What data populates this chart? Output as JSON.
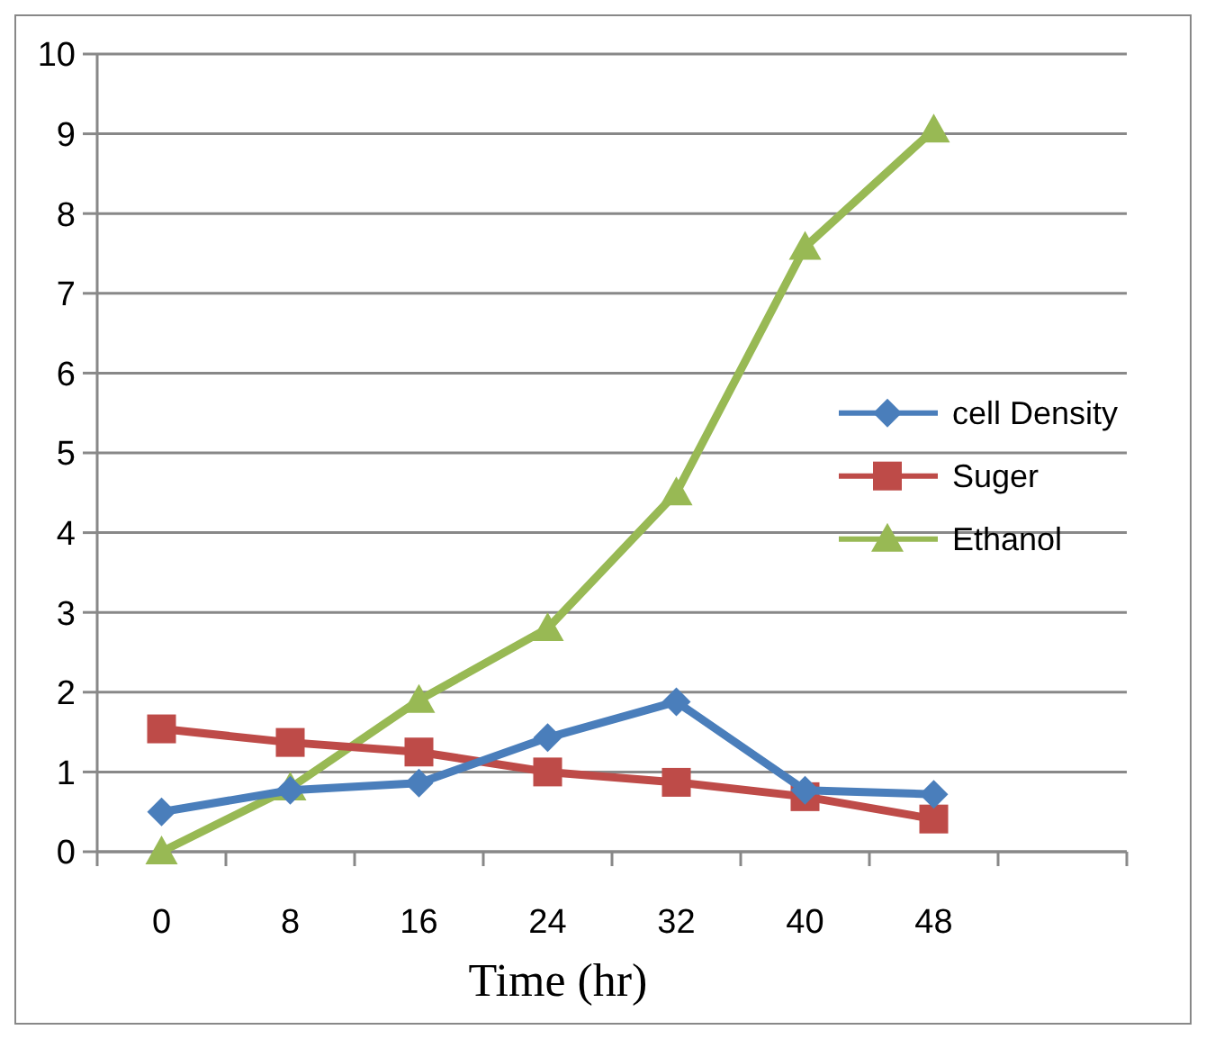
{
  "chart_data": {
    "type": "line",
    "xlabel": "Time (hr)",
    "categories": [
      "0",
      "8",
      "16",
      "24",
      "32",
      "40",
      "48",
      null
    ],
    "series": [
      {
        "name": "cell Density",
        "color": "#4a7ebb",
        "marker": "diamond",
        "values": [
          0.5,
          0.77,
          0.86,
          1.43,
          1.88,
          0.77,
          0.72,
          null
        ]
      },
      {
        "name": "Suger",
        "color": "#be4b48",
        "marker": "square",
        "values": [
          1.54,
          1.37,
          1.25,
          1.0,
          0.87,
          0.69,
          0.41,
          null
        ]
      },
      {
        "name": "Ethanol",
        "color": "#98b954",
        "marker": "triangle",
        "values": [
          0,
          0.8,
          1.9,
          2.8,
          4.5,
          7.58,
          9.05,
          null
        ]
      }
    ],
    "ylim": [
      0,
      10
    ],
    "yticks": [
      0,
      1,
      2,
      3,
      4,
      5,
      6,
      7,
      8,
      9,
      10
    ],
    "grid": "y",
    "legend": "right"
  }
}
